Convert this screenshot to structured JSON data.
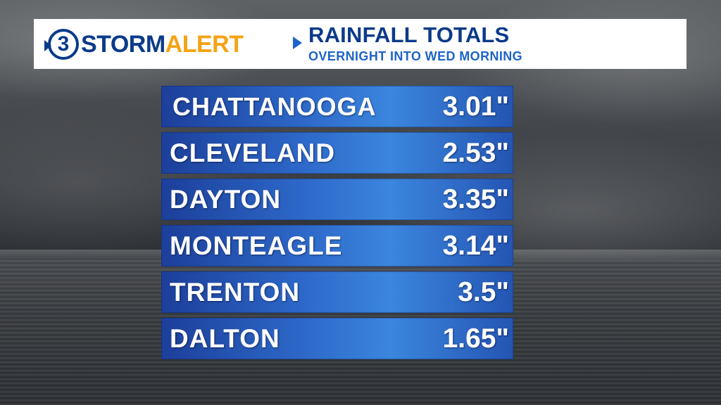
{
  "brand": {
    "channel_number": "3",
    "word_storm": "STORM",
    "word_alert": "ALERT",
    "colors": {
      "navy": "#0b3a8a",
      "orange": "#f5a315",
      "blue": "#1e64c8"
    }
  },
  "header": {
    "title": "RAINFALL TOTALS",
    "subtitle": "OVERNIGHT INTO WED MORNING"
  },
  "rainfall": [
    {
      "city": "CHATTANOOGA",
      "amount": "3.01\""
    },
    {
      "city": "CLEVELAND",
      "amount": "2.53\""
    },
    {
      "city": "DAYTON",
      "amount": "3.35\""
    },
    {
      "city": "MONTEAGLE",
      "amount": "3.14\""
    },
    {
      "city": "TRENTON",
      "amount": "3.5\""
    },
    {
      "city": "DALTON",
      "amount": "1.65\""
    }
  ]
}
